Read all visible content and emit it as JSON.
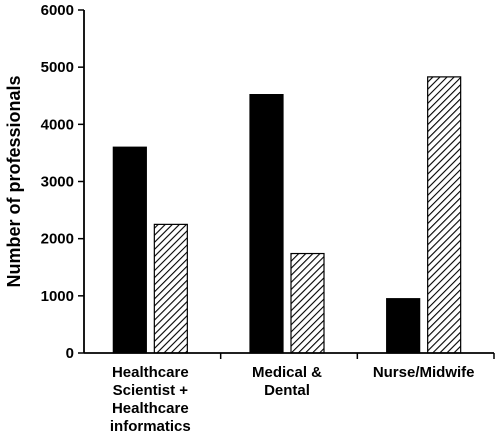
{
  "chart_data": {
    "type": "bar",
    "title": "",
    "xlabel": "",
    "ylabel": "Number of professionals",
    "ylim": [
      0,
      6000
    ],
    "yticks": [
      0,
      1000,
      2000,
      3000,
      4000,
      5000,
      6000
    ],
    "categories": [
      [
        "Healthcare",
        "Scientist +",
        "Healthcare",
        "informatics"
      ],
      [
        "Medical &",
        "Dental"
      ],
      [
        "Nurse/Midwife"
      ]
    ],
    "series": [
      {
        "fill": "solid",
        "color": "#000000",
        "values": [
          3600,
          4520,
          950
        ]
      },
      {
        "fill": "hatched",
        "color": "#000000",
        "values": [
          2250,
          1740,
          4830
        ]
      }
    ],
    "grid": false,
    "legend": "none"
  }
}
